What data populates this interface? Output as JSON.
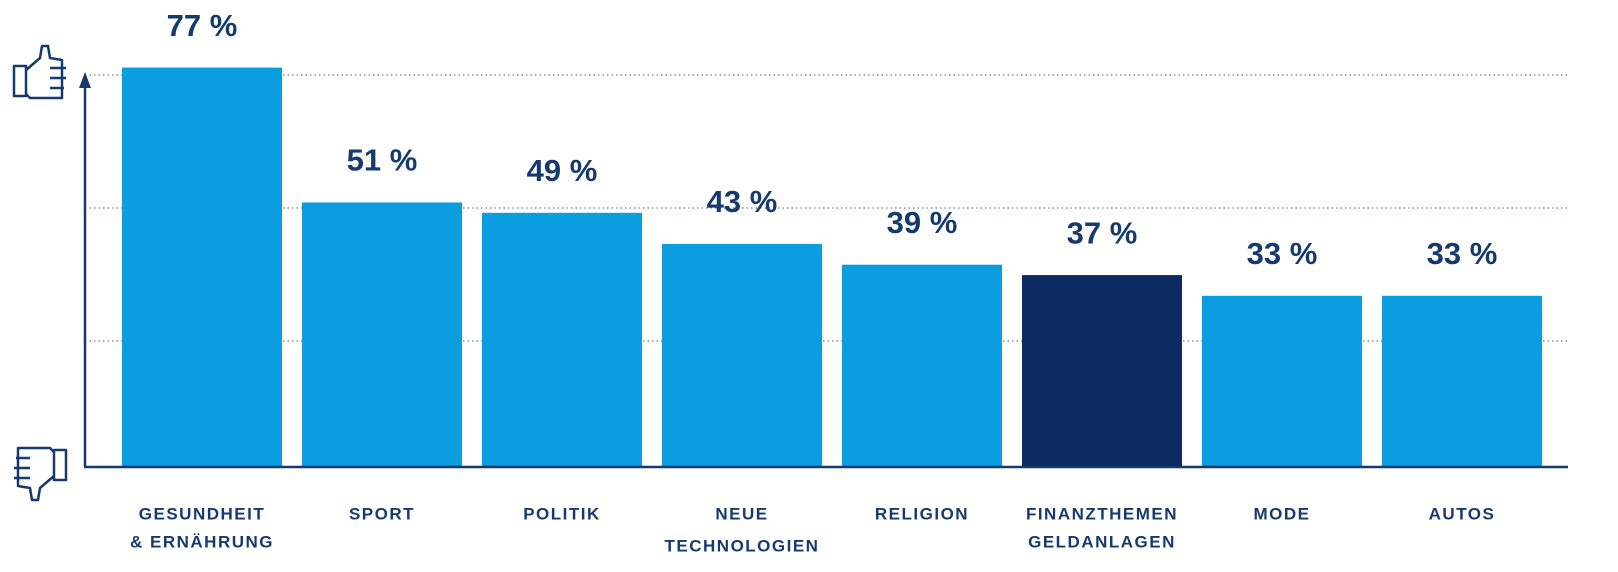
{
  "chart_data": {
    "type": "bar",
    "categories": [
      [
        "GESUNDHEIT",
        "& ERNÄHRUNG"
      ],
      [
        "SPORT"
      ],
      [
        "POLITIK"
      ],
      [
        "NEUE",
        "TECHNOLOGIEN"
      ],
      [
        "RELIGION"
      ],
      [
        "FINANZTHEMEN",
        "GELDANLAGEN"
      ],
      [
        "MODE"
      ],
      [
        "AUTOS"
      ]
    ],
    "values": [
      77,
      51,
      49,
      43,
      39,
      37,
      33,
      33
    ],
    "value_labels": [
      "77 %",
      "51 %",
      "49 %",
      "43 %",
      "39 %",
      "37 %",
      "33 %",
      "33 %"
    ],
    "colors": [
      "#0a9ee0",
      "#0a9ee0",
      "#0a9ee0",
      "#0a9ee0",
      "#0a9ee0",
      "#0d2b63",
      "#0a9ee0",
      "#0a9ee0"
    ],
    "ylim": [
      0,
      80
    ]
  }
}
